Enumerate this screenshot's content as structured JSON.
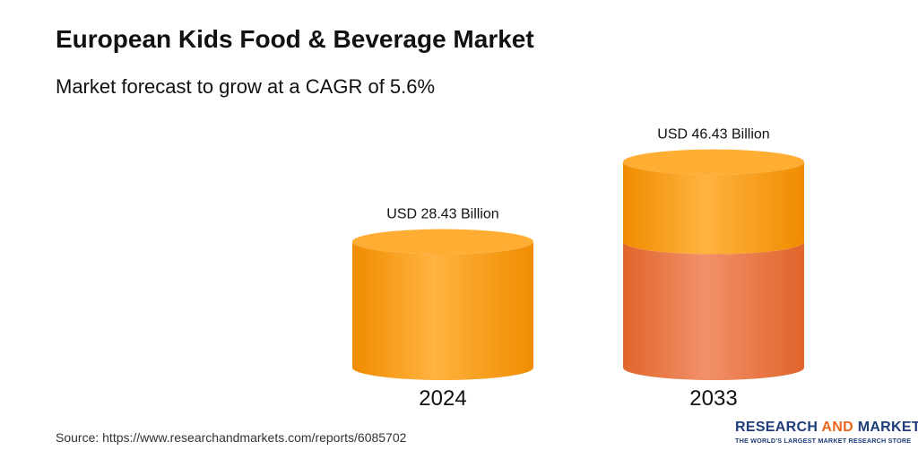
{
  "title": "European Kids Food & Beverage Market",
  "subtitle": "Market forecast to grow at a CAGR of 5.6%",
  "chart_data": {
    "type": "bar",
    "categories": [
      "2024",
      "2033"
    ],
    "values": [
      28.43,
      46.43
    ],
    "value_labels": [
      "USD 28.43 Billion",
      "USD 46.43 Billion"
    ],
    "unit": "USD Billion",
    "style": "3d-cylinder",
    "base_segment_value": 28.43,
    "colors": {
      "bar": "#ffa31a",
      "bar_dark": "#f08c00",
      "top": "#ffad33",
      "base_segment": "#f47d3c",
      "base_segment_dark": "#e0652a"
    }
  },
  "source": "Source: https://www.researchandmarkets.com/reports/6085702",
  "logo": {
    "word1": "RESEARCH",
    "word2": "AND",
    "word3": "MARKETS",
    "tagline": "THE WORLD'S LARGEST MARKET RESEARCH STORE"
  }
}
